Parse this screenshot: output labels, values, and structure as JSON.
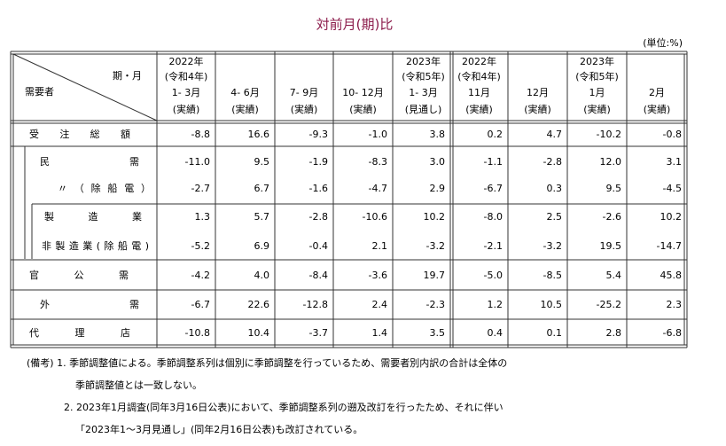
{
  "title": "対前月(期)比",
  "unit": "(単位:%)",
  "table": {
    "corner": {
      "top": "期・月",
      "bottom": "需要者"
    },
    "columns": [
      [
        "2022年",
        "(令和4年)",
        "1- 3月",
        "(実績)"
      ],
      [
        "4- 6月",
        "(実績)"
      ],
      [
        "7- 9月",
        "(実績)"
      ],
      [
        "10- 12月",
        "(実績)"
      ],
      [
        "2023年",
        "(令和5年)",
        "1- 3月",
        "(見通し)"
      ],
      [
        "2022年",
        "(令和4年)",
        "11月",
        "(実績)"
      ],
      [
        "12月",
        "(実績)"
      ],
      [
        "2023年",
        "(令和5年)",
        "1月",
        "(実績)"
      ],
      [
        "2月",
        "(実績)"
      ]
    ],
    "rows": [
      {
        "label": "受注総額",
        "values": [
          "-8.8",
          "16.6",
          "-9.3",
          "-1.0",
          "3.8",
          "0.2",
          "4.7",
          "-10.2",
          "-0.8"
        ]
      },
      {
        "label": "民需",
        "values": [
          "-11.0",
          "9.5",
          "-1.9",
          "-8.3",
          "3.0",
          "-1.1",
          "-2.8",
          "12.0",
          "3.1"
        ]
      },
      {
        "label": "〃（除船電）",
        "values": [
          "-2.7",
          "6.7",
          "-1.6",
          "-4.7",
          "2.9",
          "-6.7",
          "0.3",
          "9.5",
          "-4.5"
        ]
      },
      {
        "label": "製造業",
        "values": [
          "1.3",
          "5.7",
          "-2.8",
          "-10.6",
          "10.2",
          "-8.0",
          "2.5",
          "-2.6",
          "10.2"
        ]
      },
      {
        "label": "非製造業(除船電)",
        "values": [
          "-5.2",
          "6.9",
          "-0.4",
          "2.1",
          "-3.2",
          "-2.1",
          "-3.2",
          "19.5",
          "-14.7"
        ]
      },
      {
        "label": "官公需",
        "values": [
          "-4.2",
          "4.0",
          "-8.4",
          "-3.6",
          "19.7",
          "-5.0",
          "-8.5",
          "5.4",
          "45.8"
        ]
      },
      {
        "label": "外需",
        "values": [
          "-6.7",
          "22.6",
          "-12.8",
          "2.4",
          "-2.3",
          "1.2",
          "10.5",
          "-25.2",
          "2.3"
        ]
      },
      {
        "label": "代理店",
        "values": [
          "-10.8",
          "10.4",
          "-3.7",
          "1.4",
          "3.5",
          "0.4",
          "0.1",
          "2.8",
          "-6.8"
        ]
      }
    ]
  },
  "notes": [
    "(備考) 1. 季節調整値による。季節調整系列は個別に季節調整を行っているため、需要者別内訳の合計は全体の",
    "季節調整値とは一致しない。",
    "2. 2023年1月調査(同年3月16日公表)において、季節調整系列の遡及改訂を行ったため、それに伴い",
    "「2023年1～3月見通し」(同年2月16日公表)も改訂されている。"
  ]
}
